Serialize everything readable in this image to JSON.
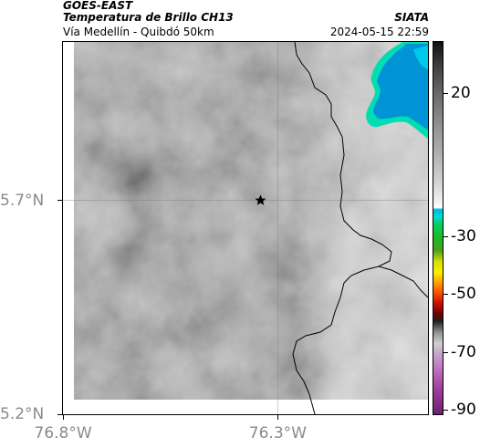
{
  "header": {
    "satellite": "GOES-EAST",
    "product": "Temperatura de Brillo CH13",
    "region": "Vía Medellín - Quibdó 50km",
    "organization": "SIATA",
    "timestamp": "2024-05-15 22:59"
  },
  "map": {
    "lon_range": [
      -76.8,
      -75.95
    ],
    "lat_range": [
      5.2,
      6.07
    ],
    "x_ticks": [
      {
        "lon": -76.8,
        "label": "76.8°W"
      },
      {
        "lon": -76.3,
        "label": "76.3°W"
      }
    ],
    "y_ticks": [
      {
        "lat": 5.7,
        "label": "5.7°N"
      },
      {
        "lat": 5.2,
        "label": "5.2°N"
      }
    ],
    "marker": {
      "name": "star-marker",
      "lon": -76.34,
      "lat": 5.7
    },
    "colors": {
      "cold_cloud": "#0093d6",
      "cold_cloud_core": "#00c8e8",
      "cloud_edge": "#00ddb0",
      "boundary": "#000000"
    }
  },
  "colorbar": {
    "ticks": [
      {
        "value": 20,
        "label": "20"
      },
      {
        "value": -30,
        "label": "-30"
      },
      {
        "value": -50,
        "label": "-50"
      },
      {
        "value": -70,
        "label": "-70"
      },
      {
        "value": -90,
        "label": "-90"
      }
    ]
  }
}
